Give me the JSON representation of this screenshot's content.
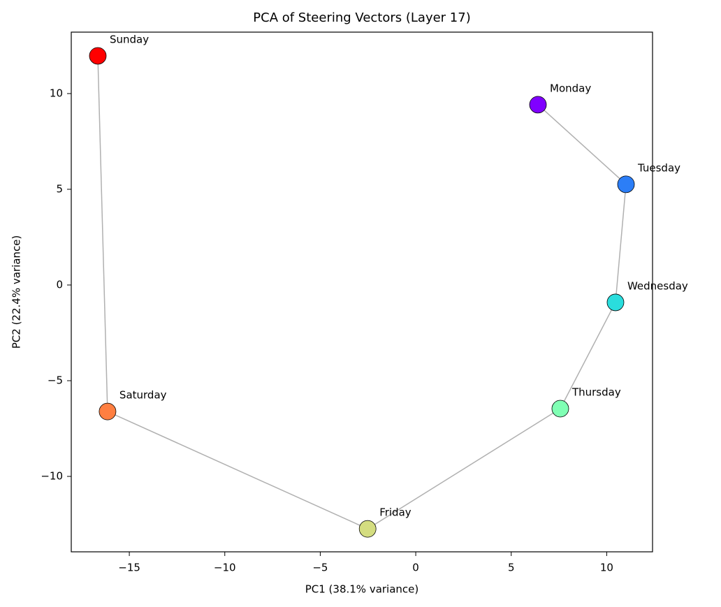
{
  "chart_data": {
    "type": "scatter",
    "title": "PCA of Steering Vectors (Layer 17)",
    "x_label": "PC1 (38.1% variance)",
    "y_label": "PC2 (22.4% variance)",
    "labels": [
      "Monday",
      "Tuesday",
      "Wednesday",
      "Thursday",
      "Friday",
      "Saturday",
      "Sunday"
    ],
    "x": [
      6.4,
      11.01,
      10.46,
      7.57,
      -2.52,
      -16.14,
      -16.65
    ],
    "y": [
      9.42,
      5.26,
      -0.91,
      -6.46,
      -12.74,
      -6.61,
      11.97
    ],
    "colors": [
      "#8000ff",
      "#2c7ef7",
      "#2adddd",
      "#80ffb4",
      "#d4dd80",
      "#ff7f41",
      "#ff0000"
    ],
    "line_color": "#b0b0b0",
    "xlim": [
      -18.04,
      12.4
    ],
    "ylim": [
      -13.94,
      13.21
    ],
    "xticks": [
      {
        "value": -15,
        "label": "−15"
      },
      {
        "value": -10,
        "label": "−10"
      },
      {
        "value": -5,
        "label": "−5"
      },
      0,
      5,
      10
    ],
    "yticks": [
      {
        "value": -10,
        "label": "−10"
      },
      {
        "value": -5,
        "label": "−5"
      },
      0,
      5,
      10
    ]
  }
}
